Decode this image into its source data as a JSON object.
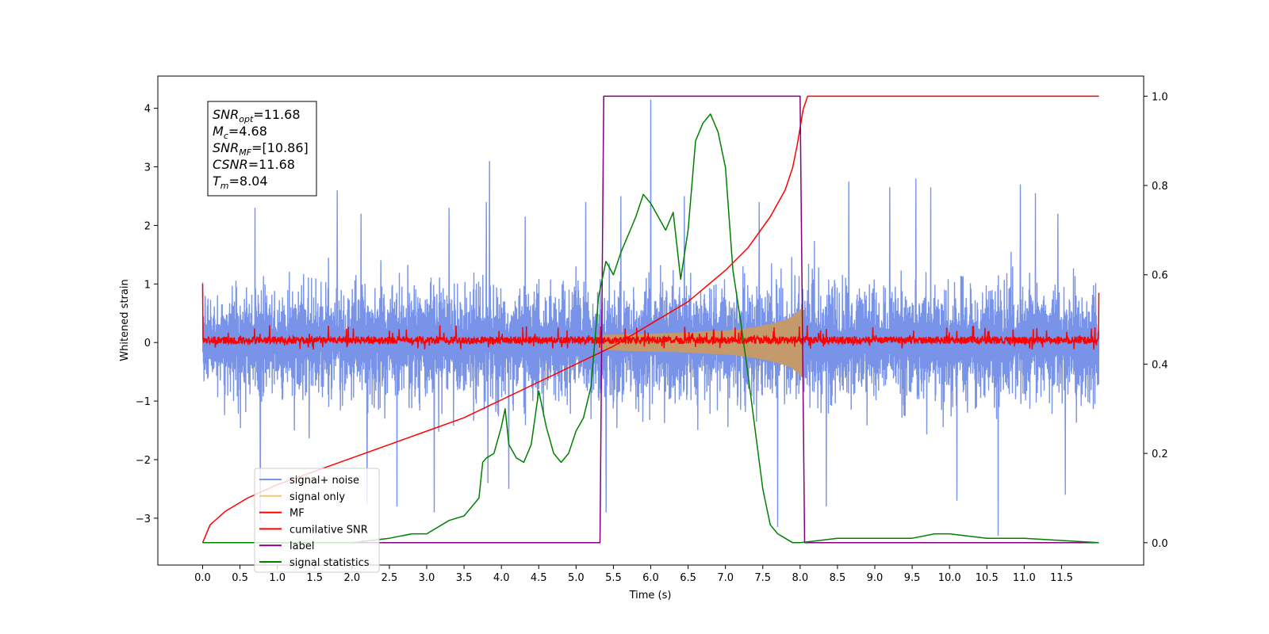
{
  "chart_data": {
    "type": "line",
    "title": "",
    "xlabel": "Time (s)",
    "ylabel": "Whitened strain",
    "xlim": [
      -0.6,
      12.6
    ],
    "ylim": [
      -3.8,
      4.55
    ],
    "y2lim": [
      -0.05,
      1.045
    ],
    "xticks": [
      0.0,
      0.5,
      1.0,
      1.5,
      2.0,
      2.5,
      3.0,
      3.5,
      4.0,
      4.5,
      5.0,
      5.5,
      6.0,
      6.5,
      7.0,
      7.5,
      8.0,
      8.5,
      9.0,
      9.5,
      10.0,
      10.5,
      11.0,
      11.5
    ],
    "xtick_labels": [
      "0.0",
      "0.5",
      "1.0",
      "1.5",
      "2.0",
      "2.5",
      "3.0",
      "3.5",
      "4.0",
      "4.5",
      "5.0",
      "5.5",
      "6.0",
      "6.5",
      "7.0",
      "7.5",
      "8.0",
      "8.5",
      "9.0",
      "9.5",
      "10.0",
      "10.5",
      "11.0",
      "11.5"
    ],
    "yticks": [
      -3,
      -2,
      -1,
      0,
      1,
      2,
      3,
      4
    ],
    "ytick_labels": [
      "−3",
      "−2",
      "−1",
      "0",
      "1",
      "2",
      "3",
      "4"
    ],
    "y2ticks": [
      0.0,
      0.2,
      0.4,
      0.6,
      0.8,
      1.0
    ],
    "y2tick_labels": [
      "0.0",
      "0.2",
      "0.4",
      "0.6",
      "0.8",
      "1.0"
    ],
    "annotation": {
      "lines": [
        {
          "sym": "SNR",
          "sub": "opt",
          "val": "=11.68"
        },
        {
          "sym": "M",
          "sub": "c",
          "val": "=4.68"
        },
        {
          "sym": "SNR",
          "sub": "MF",
          "val": "=[10.86]"
        },
        {
          "sym": "CSNR",
          "sub": "",
          "val": "=11.68"
        },
        {
          "sym": "T",
          "sub": "m",
          "val": "=8.04"
        }
      ]
    },
    "legend": {
      "placement": "lower-left",
      "entries": [
        {
          "label": "signal+ noise",
          "color": "#7893e8"
        },
        {
          "label": "signal only",
          "color": "#f5c86a"
        },
        {
          "label": "MF",
          "color": "#ff0000"
        },
        {
          "label": "cumilative SNR",
          "color": "#ff0000"
        },
        {
          "label": "label",
          "color": "#800080"
        },
        {
          "label": "signal statistics",
          "color": "#008000"
        }
      ]
    },
    "series": [
      {
        "name": "signal+ noise",
        "axis": "left",
        "color": "#7893e8",
        "x_range": [
          0.0,
          12.0
        ],
        "noise_band": [
          -2.4,
          2.4
        ],
        "peaks": [
          [
            0.7,
            2.3
          ],
          [
            0.77,
            -3.05
          ],
          [
            1.8,
            2.6
          ],
          [
            2.12,
            2.2
          ],
          [
            2.2,
            -2.75
          ],
          [
            2.6,
            -2.8
          ],
          [
            3.1,
            -2.9
          ],
          [
            3.3,
            2.3
          ],
          [
            3.8,
            2.4
          ],
          [
            3.82,
            -2.4
          ],
          [
            3.84,
            3.1
          ],
          [
            4.1,
            -2.5
          ],
          [
            4.32,
            2.15
          ],
          [
            5.13,
            2.4
          ],
          [
            5.4,
            -2.9
          ],
          [
            5.6,
            2.5
          ],
          [
            6.0,
            4.15
          ],
          [
            6.45,
            2.5
          ],
          [
            7.45,
            2.4
          ],
          [
            7.7,
            -3.15
          ],
          [
            8.35,
            -2.8
          ],
          [
            8.65,
            2.75
          ],
          [
            9.2,
            2.65
          ],
          [
            9.55,
            2.8
          ],
          [
            9.75,
            2.65
          ],
          [
            10.1,
            -2.7
          ],
          [
            10.65,
            -3.3
          ],
          [
            10.95,
            2.7
          ],
          [
            11.15,
            2.55
          ],
          [
            11.45,
            2.2
          ],
          [
            11.55,
            -2.6
          ]
        ]
      },
      {
        "name": "signal only",
        "axis": "left",
        "color": "#c49a6c",
        "x": [
          5.3,
          5.5,
          5.8,
          6.1,
          6.4,
          6.7,
          7.0,
          7.2,
          7.4,
          7.6,
          7.8,
          7.9,
          8.04
        ],
        "y": [
          0.12,
          0.13,
          0.14,
          0.15,
          0.16,
          0.18,
          0.2,
          0.22,
          0.26,
          0.31,
          0.38,
          0.44,
          0.6
        ]
      },
      {
        "name": "MF",
        "axis": "left",
        "color": "#ff0000",
        "x_range": [
          0.0,
          12.0
        ],
        "noise_band": [
          -0.12,
          0.2
        ],
        "start_value": 1.0,
        "end_value": 0.85
      },
      {
        "name": "cumilative SNR",
        "axis": "right",
        "color": "#ff0000",
        "x": [
          0.0,
          0.1,
          0.3,
          0.6,
          1.0,
          1.5,
          2.0,
          2.5,
          3.0,
          3.5,
          4.0,
          4.5,
          5.0,
          5.5,
          6.0,
          6.5,
          7.0,
          7.3,
          7.6,
          7.8,
          7.9,
          7.96,
          8.04,
          8.1,
          12.0
        ],
        "y": [
          0.0,
          0.04,
          0.07,
          0.1,
          0.13,
          0.16,
          0.19,
          0.22,
          0.25,
          0.28,
          0.32,
          0.36,
          0.4,
          0.44,
          0.49,
          0.54,
          0.61,
          0.66,
          0.73,
          0.79,
          0.84,
          0.89,
          0.97,
          1.0,
          1.0
        ]
      },
      {
        "name": "label",
        "axis": "right",
        "color": "#800080",
        "x": [
          0.0,
          5.32,
          5.37,
          8.0,
          8.06,
          12.0
        ],
        "y": [
          0.0,
          0.0,
          1.0,
          1.0,
          0.0,
          0.0
        ]
      },
      {
        "name": "signal statistics",
        "axis": "right",
        "color": "#008000",
        "x": [
          0.0,
          2.0,
          2.5,
          2.8,
          3.0,
          3.3,
          3.5,
          3.7,
          3.75,
          3.8,
          3.9,
          4.0,
          4.05,
          4.1,
          4.2,
          4.3,
          4.4,
          4.5,
          4.55,
          4.6,
          4.7,
          4.8,
          4.9,
          5.0,
          5.1,
          5.2,
          5.3,
          5.4,
          5.5,
          5.6,
          5.7,
          5.8,
          5.9,
          6.0,
          6.1,
          6.2,
          6.3,
          6.4,
          6.5,
          6.6,
          6.7,
          6.8,
          6.9,
          7.0,
          7.1,
          7.2,
          7.3,
          7.4,
          7.5,
          7.6,
          7.7,
          7.8,
          7.9,
          8.0,
          8.5,
          9.0,
          9.5,
          9.8,
          10.0,
          10.5,
          11.0,
          12.0
        ],
        "y": [
          0.0,
          0.0,
          0.01,
          0.02,
          0.02,
          0.05,
          0.06,
          0.1,
          0.18,
          0.19,
          0.2,
          0.26,
          0.3,
          0.22,
          0.19,
          0.18,
          0.22,
          0.34,
          0.3,
          0.26,
          0.2,
          0.18,
          0.2,
          0.25,
          0.28,
          0.35,
          0.55,
          0.63,
          0.6,
          0.65,
          0.69,
          0.73,
          0.78,
          0.76,
          0.73,
          0.7,
          0.74,
          0.59,
          0.7,
          0.9,
          0.94,
          0.96,
          0.92,
          0.84,
          0.61,
          0.5,
          0.38,
          0.25,
          0.12,
          0.04,
          0.02,
          0.01,
          0.0,
          0.0,
          0.01,
          0.01,
          0.01,
          0.02,
          0.02,
          0.01,
          0.01,
          0.0
        ]
      }
    ]
  }
}
